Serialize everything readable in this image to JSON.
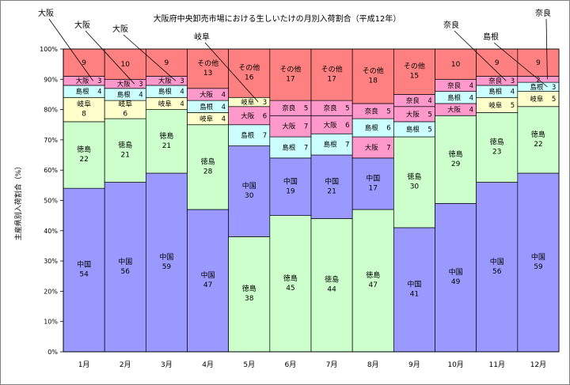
{
  "chart_data": {
    "type": "bar",
    "stacked": true,
    "title": "大阪府中央卸売市場における生しいたけの月別入荷割合（平成12年）",
    "ylabel": "主産県別入荷割合（%）",
    "xlabel": "",
    "ylim": [
      0,
      100
    ],
    "yticks": [
      "0%",
      "10%",
      "20%",
      "30%",
      "40%",
      "50%",
      "60%",
      "70%",
      "80%",
      "90%",
      "100%"
    ],
    "categories": [
      "1月",
      "2月",
      "3月",
      "4月",
      "5月",
      "6月",
      "7月",
      "8月",
      "9月",
      "10月",
      "11月",
      "12月"
    ],
    "grid": true,
    "colors": {
      "中国": "#9999ff",
      "徳島": "#ccffcc",
      "岐阜": "#ffffcc",
      "島根": "#ccffff",
      "大阪": "#ff99cc",
      "奈良": "#ff99cc",
      "その他": "#ff8080"
    },
    "bars": [
      {
        "segments": [
          {
            "name": "中国",
            "value": 54
          },
          {
            "name": "徳島",
            "value": 22
          },
          {
            "name": "岐阜",
            "value": 8
          },
          {
            "name": "島根",
            "value": 4
          },
          {
            "name": "大阪",
            "value": 3
          },
          {
            "name": "その他",
            "value": 9
          }
        ]
      },
      {
        "segments": [
          {
            "name": "中国",
            "value": 56
          },
          {
            "name": "徳島",
            "value": 21
          },
          {
            "name": "岐阜",
            "value": 6
          },
          {
            "name": "島根",
            "value": 4
          },
          {
            "name": "大阪",
            "value": 3
          },
          {
            "name": "その他",
            "value": 10
          }
        ]
      },
      {
        "segments": [
          {
            "name": "中国",
            "value": 59
          },
          {
            "name": "徳島",
            "value": 21
          },
          {
            "name": "岐阜",
            "value": 4
          },
          {
            "name": "島根",
            "value": 4
          },
          {
            "name": "大阪",
            "value": 3
          },
          {
            "name": "その他",
            "value": 9
          }
        ]
      },
      {
        "segments": [
          {
            "name": "中国",
            "value": 47
          },
          {
            "name": "徳島",
            "value": 28
          },
          {
            "name": "岐阜",
            "value": 4
          },
          {
            "name": "島根",
            "value": 4
          },
          {
            "name": "大阪",
            "value": 4
          },
          {
            "name": "その他",
            "value": 13
          }
        ]
      },
      {
        "segments": [
          {
            "name": "徳島",
            "value": 38
          },
          {
            "name": "中国",
            "value": 30
          },
          {
            "name": "島根",
            "value": 7
          },
          {
            "name": "大阪",
            "value": 6
          },
          {
            "name": "岐阜",
            "value": 3
          },
          {
            "name": "その他",
            "value": 16
          }
        ]
      },
      {
        "segments": [
          {
            "name": "徳島",
            "value": 45
          },
          {
            "name": "中国",
            "value": 19
          },
          {
            "name": "島根",
            "value": 7
          },
          {
            "name": "大阪",
            "value": 7
          },
          {
            "name": "奈良",
            "value": 5
          },
          {
            "name": "その他",
            "value": 17
          }
        ]
      },
      {
        "segments": [
          {
            "name": "徳島",
            "value": 44
          },
          {
            "name": "中国",
            "value": 21
          },
          {
            "name": "島根",
            "value": 7
          },
          {
            "name": "大阪",
            "value": 6
          },
          {
            "name": "奈良",
            "value": 5
          },
          {
            "name": "その他",
            "value": 17
          }
        ]
      },
      {
        "segments": [
          {
            "name": "徳島",
            "value": 47
          },
          {
            "name": "中国",
            "value": 17
          },
          {
            "name": "大阪",
            "value": 7
          },
          {
            "name": "島根",
            "value": 6
          },
          {
            "name": "奈良",
            "value": 5
          },
          {
            "name": "その他",
            "value": 18
          }
        ]
      },
      {
        "segments": [
          {
            "name": "中国",
            "value": 41
          },
          {
            "name": "徳島",
            "value": 30
          },
          {
            "name": "島根",
            "value": 5
          },
          {
            "name": "大阪",
            "value": 5
          },
          {
            "name": "奈良",
            "value": 4
          },
          {
            "name": "その他",
            "value": 15
          }
        ]
      },
      {
        "segments": [
          {
            "name": "中国",
            "value": 49
          },
          {
            "name": "徳島",
            "value": 29
          },
          {
            "name": "大阪",
            "value": 4
          },
          {
            "name": "島根",
            "value": 4
          },
          {
            "name": "奈良",
            "value": 4
          },
          {
            "name": "その他",
            "value": 10
          }
        ]
      },
      {
        "segments": [
          {
            "name": "中国",
            "value": 56
          },
          {
            "name": "徳島",
            "value": 23
          },
          {
            "name": "岐阜",
            "value": 5
          },
          {
            "name": "島根",
            "value": 4
          },
          {
            "name": "奈良",
            "value": 3
          },
          {
            "name": "その他",
            "value": 9
          }
        ]
      },
      {
        "segments": [
          {
            "name": "中国",
            "value": 59
          },
          {
            "name": "徳島",
            "value": 22
          },
          {
            "name": "岐阜",
            "value": 5
          },
          {
            "name": "島根",
            "value": 3
          },
          {
            "name": "奈良",
            "value": 2
          },
          {
            "name": "その他",
            "value": 9
          }
        ]
      }
    ],
    "annotations": [
      {
        "text": "大阪",
        "month": "1月",
        "segment": "大阪"
      },
      {
        "text": "大阪",
        "month": "2月",
        "segment": "大阪"
      },
      {
        "text": "大阪",
        "month": "3月",
        "segment": "大阪"
      },
      {
        "text": "岐阜",
        "month": "5月",
        "segment": "岐阜"
      },
      {
        "text": "奈良",
        "month": "11月",
        "segment": "奈良"
      },
      {
        "text": "島根",
        "month": "12月",
        "segment": "島根"
      },
      {
        "text": "奈良",
        "month": "12月",
        "segment": "奈良"
      }
    ]
  }
}
